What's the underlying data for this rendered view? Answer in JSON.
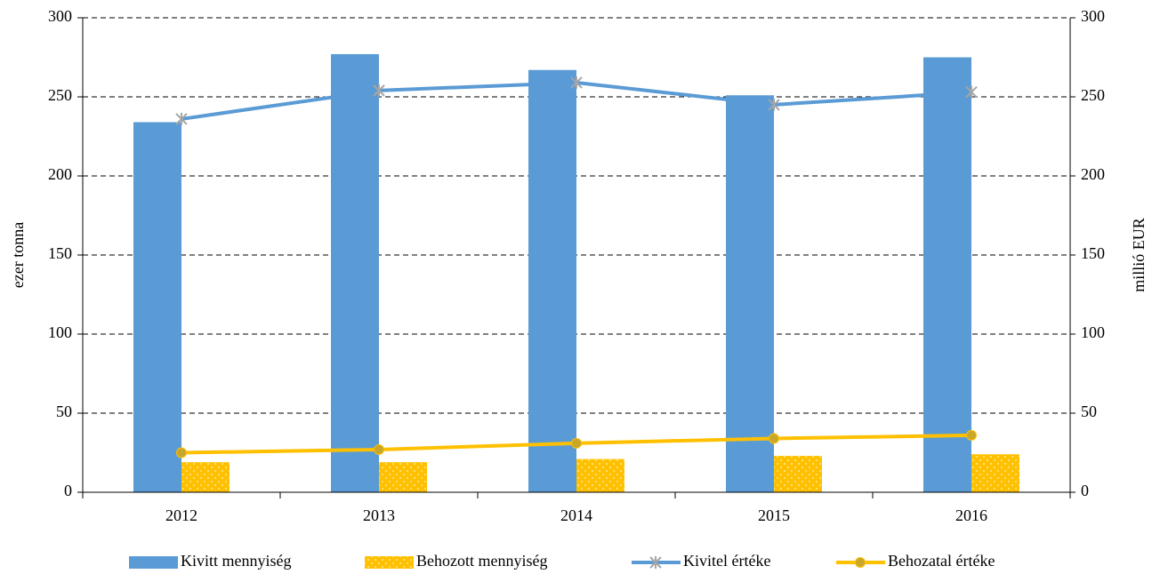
{
  "chart_data": {
    "type": "bar",
    "categories": [
      "2012",
      "2013",
      "2014",
      "2015",
      "2016"
    ],
    "series": [
      {
        "name": "Kivitt mennyiség",
        "type": "bar",
        "color": "#5b9bd5",
        "values": [
          234,
          277,
          267,
          251,
          275
        ]
      },
      {
        "name": "Behozott mennyiség",
        "type": "bar",
        "color": "#ffc000",
        "pattern": "dots",
        "values": [
          19,
          19,
          21,
          23,
          24
        ]
      },
      {
        "name": "Kivitel értéke",
        "type": "line",
        "axis": "y2",
        "color": "#5b9bd5",
        "marker": "star",
        "marker_color": "#a5a5a5",
        "values": [
          236,
          254,
          259,
          245,
          253
        ]
      },
      {
        "name": "Behozatal értéke",
        "type": "line",
        "axis": "y2",
        "color": "#ffc000",
        "marker": "circle",
        "marker_color": "#c9a72a",
        "values": [
          25,
          27,
          31,
          34,
          36
        ]
      }
    ],
    "ylabel": "ezer tonna",
    "y2label": "millió EUR",
    "ylim": [
      0,
      300
    ],
    "yticks": [
      0,
      50,
      100,
      150,
      200,
      250,
      300
    ],
    "y2lim": [
      0,
      300
    ],
    "y2ticks": [
      0,
      50,
      100,
      150,
      200,
      250,
      300
    ],
    "grid": true,
    "legend": "bottom"
  }
}
